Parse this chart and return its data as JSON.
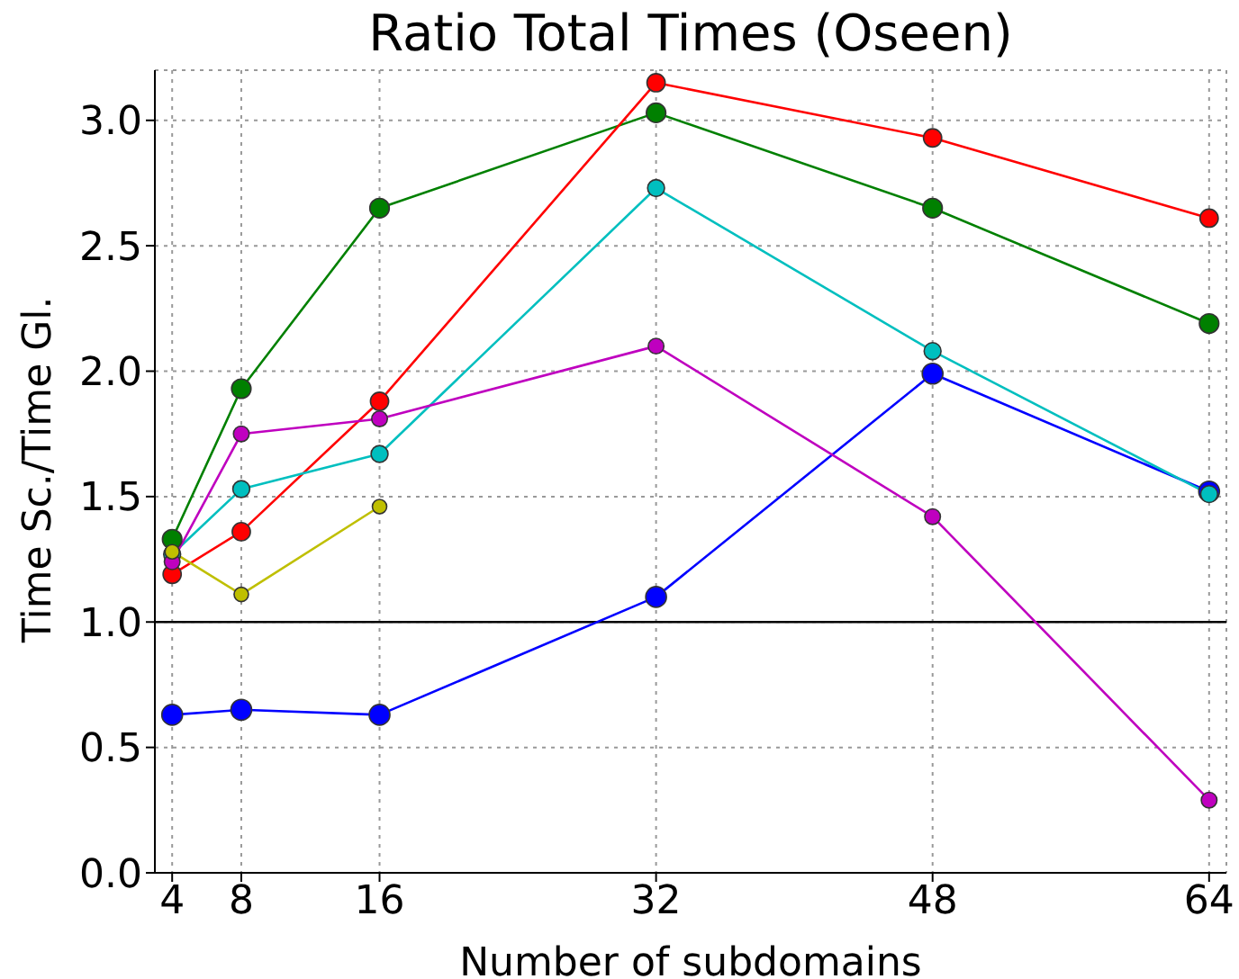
{
  "chart_data": {
    "type": "line",
    "title": "Ratio Total Times (Oseen)",
    "xlabel": "Number of subdomains",
    "ylabel": "Time Sc./Time Gl.",
    "x": [
      4,
      8,
      16,
      32,
      48,
      64
    ],
    "series": [
      {
        "color": "#0000ff",
        "values": [
          0.63,
          0.65,
          0.63,
          1.1,
          1.99,
          1.52
        ]
      },
      {
        "color": "#008000",
        "values": [
          1.33,
          1.93,
          2.65,
          3.03,
          2.65,
          2.19
        ]
      },
      {
        "color": "#ff0000",
        "values": [
          1.19,
          1.36,
          1.88,
          3.15,
          2.93,
          2.61
        ]
      },
      {
        "color": "#00bfbf",
        "values": [
          1.27,
          1.53,
          1.67,
          2.73,
          2.08,
          1.51
        ]
      },
      {
        "color": "#bf00bf",
        "values": [
          1.24,
          1.75,
          1.81,
          2.1,
          1.42,
          0.29
        ]
      },
      {
        "color": "#bfbf00",
        "values": [
          1.28,
          1.11,
          1.46,
          null,
          null,
          null
        ]
      }
    ],
    "xlim": [
      3,
      65
    ],
    "xticks": [
      4,
      8,
      16,
      32,
      48,
      64
    ],
    "ylim": [
      0,
      3.2
    ],
    "yticks": [
      {
        "value": 0,
        "label": "0.0"
      },
      {
        "value": 0.5,
        "label": "0.5"
      },
      {
        "value": 1,
        "label": "1.0"
      },
      {
        "value": 1.5,
        "label": "1.5"
      },
      {
        "value": 2,
        "label": "2.0"
      },
      {
        "value": 2.5,
        "label": "2.5"
      },
      {
        "value": 3,
        "label": "3.0"
      }
    ],
    "ref_lines": [
      {
        "axis": "y",
        "value": 1,
        "color": "#000000"
      }
    ],
    "grid": true,
    "marker": "circle",
    "line_style": "solid"
  }
}
